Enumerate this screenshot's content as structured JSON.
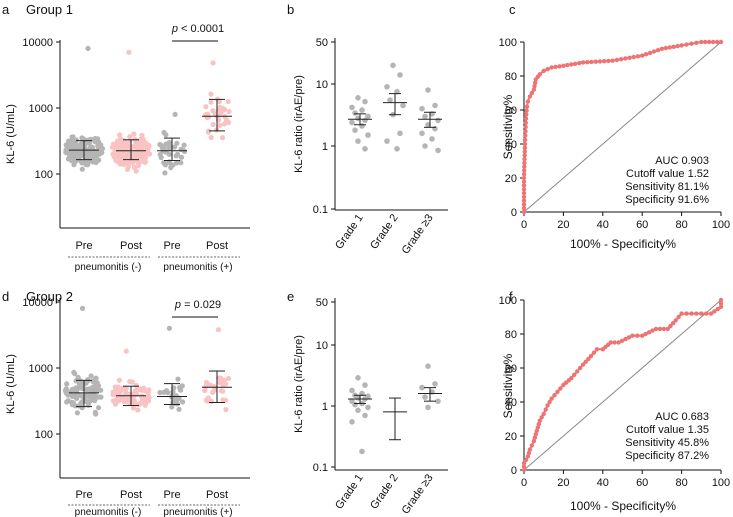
{
  "colors": {
    "grey": "#b5b5b5",
    "pink": "#f9c3c3",
    "red": "#ee7474",
    "diag": "#888888",
    "err": "#222222"
  },
  "panels": {
    "a": {
      "letter": "a",
      "group": "Group 1",
      "ylabel": "KL-6 (U/mL)",
      "yticks": [
        "10000",
        "1000",
        "100"
      ],
      "xlabels": [
        "Pre",
        "Post",
        "Pre",
        "Post"
      ],
      "pneu_neg": "pneumonitis (-)",
      "pneu_pos": "pneumonitis (+)",
      "p_prefix": "p",
      "p_text": " < 0.0001"
    },
    "b": {
      "letter": "b",
      "ylabel": "KL-6 ratio (irAE/pre)",
      "yticks": [
        "50",
        "10",
        "1",
        "0.1"
      ],
      "xlabels": [
        "Grade 1",
        "Grade 2",
        "Grade ≥3"
      ]
    },
    "c": {
      "letter": "c",
      "xlabel": "100% - Specificity%",
      "ylabel": "Sensitivity%",
      "xticks": [
        "0",
        "20",
        "40",
        "60",
        "80",
        "100"
      ],
      "yticks": [
        "0",
        "20",
        "40",
        "60",
        "80",
        "100"
      ],
      "stats": [
        "AUC 0.903",
        "Cutoff value 1.52",
        "Sensitivity 81.1%",
        "Specificity 91.6%"
      ]
    },
    "d": {
      "letter": "d",
      "group": "Group 2",
      "ylabel": "KL-6 (U/mL)",
      "yticks": [
        "10000",
        "1000",
        "100"
      ],
      "xlabels": [
        "Pre",
        "Post",
        "Pre",
        "Post"
      ],
      "pneu_neg": "pneumonitis (-)",
      "pneu_pos": "pneumonitis (+)",
      "p_prefix": "p",
      "p_text": " = 0.029"
    },
    "e": {
      "letter": "e",
      "ylabel": "KL-6 ratio (irAE/pre)",
      "yticks": [
        "50",
        "10",
        "1",
        "0.1"
      ],
      "xlabels": [
        "Grade 1",
        "Grade 2",
        "Grade ≥3"
      ]
    },
    "f": {
      "letter": "f",
      "xlabel": "100% - Specificity%",
      "ylabel": "Sensitivity%",
      "xticks": [
        "0",
        "20",
        "40",
        "60",
        "80",
        "100"
      ],
      "yticks": [
        "0",
        "20",
        "40",
        "60",
        "80",
        "100"
      ],
      "stats": [
        "AUC 0.683",
        "Cutoff value 1.35",
        "Sensitivity 45.8%",
        "Specificity 87.2%"
      ]
    }
  },
  "chart_data": [
    {
      "id": "a",
      "type": "scatter",
      "title": "Group 1",
      "ylabel": "KL-6 (U/mL)",
      "yscale": "log",
      "ylim": [
        40,
        10000
      ],
      "categories": [
        "Pre",
        "Post",
        "Pre",
        "Post"
      ],
      "groups": [
        {
          "name": "pneumonitis (-) Pre",
          "median": 230,
          "q1": 165,
          "q3": 320,
          "n": 240,
          "min": 65,
          "max": 8000
        },
        {
          "name": "pneumonitis (-) Post",
          "median": 225,
          "q1": 165,
          "q3": 330,
          "n": 200,
          "min": 75,
          "max": 7000
        },
        {
          "name": "pneumonitis (+) Pre",
          "median": 225,
          "q1": 160,
          "q3": 350,
          "n": 37,
          "min": 80,
          "max": 800
        },
        {
          "name": "pneumonitis (+) Post",
          "median": 750,
          "q1": 450,
          "q3": 1350,
          "n": 37,
          "min": 130,
          "max": 4800
        }
      ],
      "annotation": "p < 0.0001"
    },
    {
      "id": "b",
      "type": "scatter",
      "ylabel": "KL-6 ratio (irAE/pre)",
      "yscale": "log",
      "ylim": [
        0.1,
        50
      ],
      "categories": [
        "Grade 1",
        "Grade 2",
        "Grade ≥3"
      ],
      "groups": [
        {
          "name": "Grade 1",
          "mean": 2.7,
          "low": 2.2,
          "high": 3.3,
          "n": 14
        },
        {
          "name": "Grade 2",
          "mean": 5.0,
          "low": 3.2,
          "high": 7.0,
          "n": 10
        },
        {
          "name": "Grade ≥3",
          "mean": 2.7,
          "low": 2.0,
          "high": 3.5,
          "n": 12
        }
      ]
    },
    {
      "id": "c",
      "type": "line",
      "xlabel": "100% - Specificity%",
      "ylabel": "Sensitivity%",
      "xlim": [
        0,
        100
      ],
      "ylim": [
        0,
        100
      ],
      "x": [
        0,
        0,
        0.5,
        1,
        1.5,
        2,
        3,
        4,
        5,
        6,
        8,
        10,
        14,
        20,
        30,
        45,
        60,
        70,
        80,
        85,
        90,
        100
      ],
      "y": [
        0,
        20,
        40,
        55,
        62,
        65,
        68,
        70,
        72,
        78,
        81,
        83,
        85,
        86,
        88,
        89,
        92,
        96,
        98,
        99,
        100,
        100
      ],
      "auc": 0.903,
      "cutoff": 1.52,
      "sensitivity": 81.1,
      "specificity": 91.6
    },
    {
      "id": "d",
      "type": "scatter",
      "title": "Group 2",
      "ylabel": "KL-6 (U/mL)",
      "yscale": "log",
      "ylim": [
        40,
        10000
      ],
      "categories": [
        "Pre",
        "Post",
        "Pre",
        "Post"
      ],
      "groups": [
        {
          "name": "pneumonitis (-) Pre",
          "median": 420,
          "q1": 260,
          "q3": 650,
          "n": 100,
          "min": 130,
          "max": 8000
        },
        {
          "name": "pneumonitis (-) Post",
          "median": 380,
          "q1": 270,
          "q3": 530,
          "n": 80,
          "min": 150,
          "max": 1800
        },
        {
          "name": "pneumonitis (+) Pre",
          "median": 370,
          "q1": 280,
          "q3": 580,
          "n": 24,
          "min": 150,
          "max": 4000
        },
        {
          "name": "pneumonitis (+) Post",
          "median": 510,
          "q1": 300,
          "q3": 900,
          "n": 24,
          "min": 110,
          "max": 3800
        }
      ],
      "annotation": "p = 0.029"
    },
    {
      "id": "e",
      "type": "scatter",
      "ylabel": "KL-6 ratio (irAE/pre)",
      "yscale": "log",
      "ylim": [
        0.1,
        50
      ],
      "categories": [
        "Grade 1",
        "Grade 2",
        "Grade ≥3"
      ],
      "groups": [
        {
          "name": "Grade 1",
          "mean": 1.3,
          "low": 1.1,
          "high": 1.5,
          "n": 16
        },
        {
          "name": "Grade 2",
          "mean": 0.8,
          "low": 0.28,
          "high": 1.35,
          "n": 2
        },
        {
          "name": "Grade ≥3",
          "mean": 1.6,
          "low": 1.2,
          "high": 2.0,
          "n": 7
        }
      ]
    },
    {
      "id": "f",
      "type": "line",
      "xlabel": "100% - Specificity%",
      "ylabel": "Sensitivity%",
      "xlim": [
        0,
        100
      ],
      "ylim": [
        0,
        100
      ],
      "x": [
        0,
        0,
        2,
        3,
        5,
        6,
        8,
        10,
        12,
        14,
        17,
        20,
        24,
        27,
        30,
        34,
        37,
        40,
        44,
        48,
        55,
        60,
        67,
        73,
        77,
        80,
        85,
        90,
        95,
        100,
        100
      ],
      "y": [
        0,
        4,
        8,
        12,
        17,
        21,
        29,
        33,
        38,
        42,
        46,
        50,
        54,
        58,
        62,
        67,
        71,
        71,
        75,
        75,
        79,
        79,
        83,
        83,
        88,
        92,
        92,
        92,
        92,
        96,
        100
      ],
      "auc": 0.683,
      "cutoff": 1.35,
      "sensitivity": 45.8,
      "specificity": 87.2
    }
  ]
}
